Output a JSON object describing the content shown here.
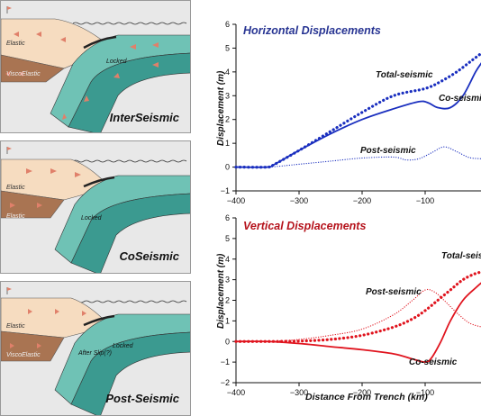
{
  "panels": [
    {
      "title": "InterSeismic",
      "labels": {
        "upper": "Elastic",
        "lower": "ViscoElastic",
        "locked": "Locked"
      }
    },
    {
      "title": "CoSeismic",
      "labels": {
        "upper": "Elastic",
        "lower": "Elastic",
        "locked": "Locked"
      }
    },
    {
      "title": "Post-Seismic",
      "labels": {
        "upper": "Elastic",
        "lower": "ViscoElastic",
        "locked": "Locked",
        "afterslip": "After Slip(?)"
      }
    }
  ],
  "colors": {
    "crust": "#f6dcc0",
    "mantle": "#a97452",
    "slab": "#6fc2b5",
    "slab_dark": "#3b9a90",
    "arrow": "#e0806a",
    "panel_bg": "#e8e8e8"
  },
  "chart_data": [
    {
      "type": "line",
      "title": "Horizontal Displacements",
      "title_color": "#283593",
      "ylabel": "Displacement (m)",
      "xlabel": "",
      "xlim": [
        -400,
        0
      ],
      "ylim": [
        -1,
        6
      ],
      "xticks": [
        -400,
        -300,
        -200,
        -100
      ],
      "yticks": [
        -1,
        0,
        1,
        2,
        3,
        4,
        5,
        6
      ],
      "color": "#1a2fbf",
      "series": [
        {
          "name": "Total-seismic",
          "style": "thick-dotted",
          "x": [
            -400,
            -350,
            -340,
            -300,
            -250,
            -200,
            -150,
            -100,
            -75,
            -50,
            -25,
            -10
          ],
          "y": [
            0,
            0,
            0.1,
            0.7,
            1.5,
            2.3,
            3.0,
            3.3,
            3.6,
            4.0,
            4.5,
            4.8
          ]
        },
        {
          "name": "Co-seismic",
          "style": "solid",
          "x": [
            -400,
            -350,
            -340,
            -300,
            -250,
            -200,
            -150,
            -110,
            -95,
            -80,
            -60,
            -40,
            -20,
            -10
          ],
          "y": [
            0,
            0,
            0.1,
            0.7,
            1.4,
            2.0,
            2.45,
            2.75,
            2.7,
            2.5,
            2.5,
            3.0,
            4.0,
            4.4
          ]
        },
        {
          "name": "Post-seismic",
          "style": "thin-dotted",
          "x": [
            -400,
            -350,
            -300,
            -250,
            -200,
            -150,
            -130,
            -110,
            -90,
            -70,
            -50,
            -30,
            -10
          ],
          "y": [
            0,
            0,
            0.12,
            0.25,
            0.38,
            0.42,
            0.3,
            0.35,
            0.6,
            0.85,
            0.65,
            0.4,
            0.35
          ]
        }
      ]
    },
    {
      "type": "line",
      "title": "Vertical Displacements",
      "title_color": "#b5121b",
      "ylabel": "Displacement (m)",
      "xlabel": "Distance From Trench (km)",
      "xlim": [
        -400,
        0
      ],
      "ylim": [
        -2,
        6
      ],
      "xticks": [
        -400,
        -300,
        -200,
        -100
      ],
      "yticks": [
        -2,
        -1,
        0,
        1,
        2,
        3,
        4,
        5,
        6
      ],
      "color": "#e0141e",
      "series": [
        {
          "name": "Total-seismic",
          "style": "thick-dotted",
          "x": [
            -400,
            -350,
            -300,
            -250,
            -200,
            -150,
            -120,
            -100,
            -80,
            -60,
            -40,
            -20,
            -5
          ],
          "y": [
            0,
            0,
            0.02,
            0.1,
            0.3,
            0.7,
            1.1,
            1.5,
            2.0,
            2.5,
            3.0,
            3.3,
            3.4
          ]
        },
        {
          "name": "Co-seismic",
          "style": "solid",
          "x": [
            -400,
            -350,
            -300,
            -250,
            -200,
            -150,
            -120,
            -100,
            -90,
            -75,
            -60,
            -40,
            -20,
            -5
          ],
          "y": [
            0,
            0,
            -0.1,
            -0.25,
            -0.4,
            -0.6,
            -0.85,
            -1.0,
            -0.8,
            0.0,
            1.0,
            2.0,
            2.6,
            3.0
          ]
        },
        {
          "name": "Post-seismic",
          "style": "thin-dotted",
          "x": [
            -400,
            -350,
            -300,
            -250,
            -200,
            -150,
            -120,
            -100,
            -85,
            -70,
            -50,
            -30,
            -10
          ],
          "y": [
            0,
            0,
            0.1,
            0.3,
            0.6,
            1.3,
            2.0,
            2.5,
            2.4,
            2.0,
            1.4,
            0.9,
            0.7
          ]
        }
      ],
      "labels": [
        "Total-seismic",
        "Post-seismic",
        "Co-seismic"
      ]
    }
  ]
}
